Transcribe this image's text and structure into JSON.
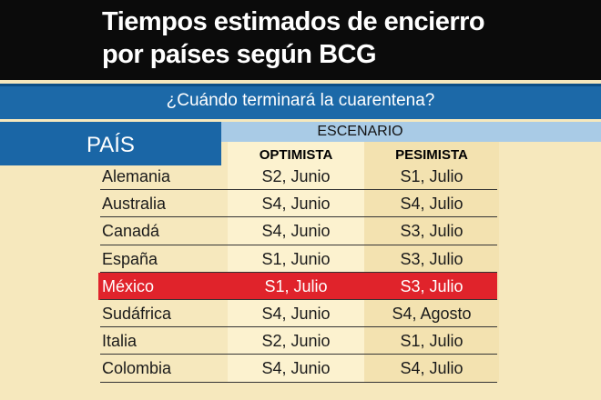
{
  "header": {
    "title_lines": [
      "Tiempos estimados de encierro",
      "por países según BCG"
    ],
    "subtitle": "¿Cuándo terminará la cuarentena?"
  },
  "table": {
    "country_header": "PAÍS",
    "scenario_header": "ESCENARIO",
    "columns": [
      "OPTIMISTA",
      "PESIMISTA"
    ],
    "rows": [
      [
        "Alemania",
        "S2, Junio",
        "S1, Julio"
      ],
      [
        "Australia",
        "S4, Junio",
        "S4, Julio"
      ],
      [
        "Canadá",
        "S4, Junio",
        "S3, Julio"
      ],
      [
        "España",
        "S1, Junio",
        "S3, Julio"
      ],
      [
        "México",
        "S1, Julio",
        "S3, Julio"
      ],
      [
        "Sudáfrica",
        "S4, Junio",
        "S4, Agosto"
      ],
      [
        "Italia",
        "S2, Junio",
        "S1, Julio"
      ],
      [
        "Colombia",
        "S4, Junio",
        "S4, Julio"
      ]
    ],
    "highlight_row": 4
  }
}
